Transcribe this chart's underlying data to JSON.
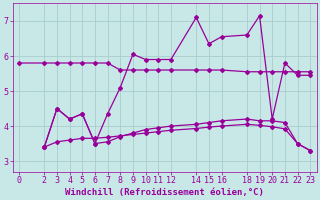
{
  "xlabel": "Windchill (Refroidissement éolien,°C)",
  "bg_color": "#c8e8e8",
  "line_color": "#990099",
  "grid_color": "#aacccc",
  "xlim": [
    -0.5,
    23.5
  ],
  "ylim": [
    2.7,
    7.5
  ],
  "xticks": [
    0,
    2,
    3,
    4,
    5,
    6,
    7,
    8,
    9,
    10,
    11,
    12,
    14,
    15,
    16,
    18,
    19,
    20,
    21,
    22,
    23
  ],
  "yticks": [
    3,
    4,
    5,
    6,
    7
  ],
  "line1_x": [
    0,
    2,
    3,
    4,
    5,
    6,
    7,
    8,
    9,
    10,
    11,
    12,
    14,
    15,
    16,
    18,
    19,
    20,
    21,
    22,
    23
  ],
  "line1_y": [
    5.8,
    5.8,
    5.8,
    5.8,
    5.8,
    5.8,
    5.8,
    5.6,
    5.6,
    5.6,
    5.6,
    5.6,
    5.6,
    5.6,
    5.6,
    5.55,
    5.55,
    5.55,
    5.55,
    5.55,
    5.55
  ],
  "line2_x": [
    2,
    3,
    4,
    5,
    6,
    7,
    8,
    9,
    10,
    11,
    12,
    14,
    15,
    16,
    18,
    19,
    20,
    21,
    22,
    23
  ],
  "line2_y": [
    3.4,
    4.5,
    4.2,
    4.35,
    3.5,
    4.35,
    5.1,
    6.05,
    5.9,
    5.9,
    5.9,
    7.1,
    6.35,
    6.55,
    6.6,
    7.15,
    4.2,
    5.8,
    5.45,
    5.45
  ],
  "line3_x": [
    2,
    3,
    4,
    5,
    6,
    7,
    8,
    9,
    10,
    11,
    12,
    14,
    15,
    16,
    18,
    19,
    20,
    21,
    22,
    23
  ],
  "line3_y": [
    3.4,
    4.5,
    4.2,
    4.35,
    3.5,
    3.55,
    3.7,
    3.8,
    3.9,
    3.95,
    4.0,
    4.05,
    4.1,
    4.15,
    4.2,
    4.15,
    4.15,
    4.1,
    3.5,
    3.3
  ],
  "line4_x": [
    2,
    3,
    4,
    5,
    6,
    7,
    8,
    9,
    10,
    11,
    12,
    14,
    15,
    16,
    18,
    19,
    20,
    21,
    22,
    23
  ],
  "line4_y": [
    3.4,
    3.55,
    3.6,
    3.65,
    3.65,
    3.68,
    3.72,
    3.76,
    3.8,
    3.84,
    3.88,
    3.93,
    3.97,
    4.0,
    4.05,
    4.02,
    3.98,
    3.92,
    3.5,
    3.3
  ],
  "font_color": "#990099",
  "tick_fontsize": 6,
  "label_fontsize": 6.5
}
